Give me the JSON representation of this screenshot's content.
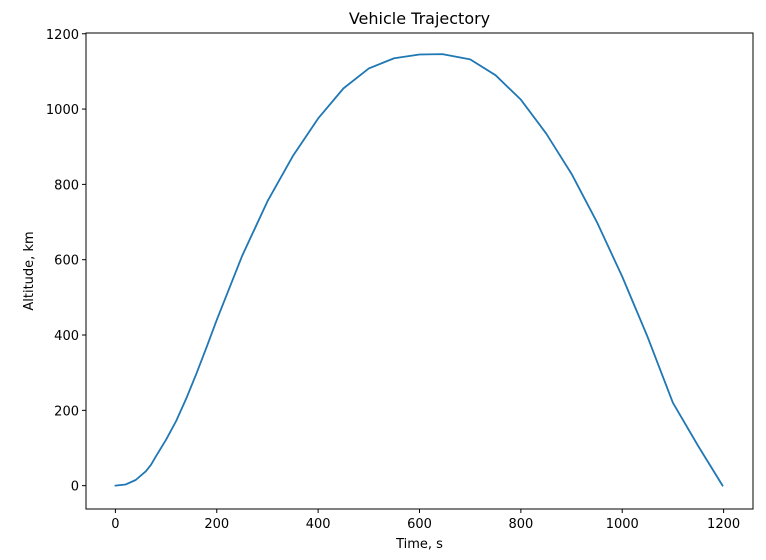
{
  "chart_data": {
    "type": "line",
    "title": "Vehicle Trajectory",
    "xlabel": "Time, s",
    "ylabel": "Altitude, km",
    "xlim": [
      -58,
      1258
    ],
    "ylim": [
      -62,
      1202
    ],
    "xticks": [
      0,
      200,
      400,
      600,
      800,
      1000,
      1200
    ],
    "yticks": [
      0,
      200,
      400,
      600,
      800,
      1000,
      1200
    ],
    "xtick_labels": [
      "0",
      "200",
      "400",
      "600",
      "800",
      "1000",
      "1200"
    ],
    "ytick_labels": [
      "0",
      "200",
      "400",
      "600",
      "800",
      "1000",
      "1200"
    ],
    "grid": false,
    "legend": "none",
    "series_color": "#1f77b4",
    "series": [
      {
        "x": [
          0,
          20,
          40,
          60,
          70,
          80,
          100,
          120,
          140,
          160,
          180,
          200,
          250,
          300,
          350,
          400,
          450,
          500,
          550,
          600,
          645,
          700,
          750,
          800,
          850,
          900,
          950,
          1000,
          1050,
          1100,
          1150,
          1198
        ],
        "y": [
          0,
          3,
          15,
          38,
          55,
          78,
          122,
          172,
          232,
          298,
          368,
          440,
          610,
          755,
          875,
          975,
          1055,
          1108,
          1135,
          1145,
          1146,
          1132,
          1090,
          1025,
          935,
          828,
          700,
          555,
          395,
          220,
          105,
          0
        ]
      }
    ]
  }
}
